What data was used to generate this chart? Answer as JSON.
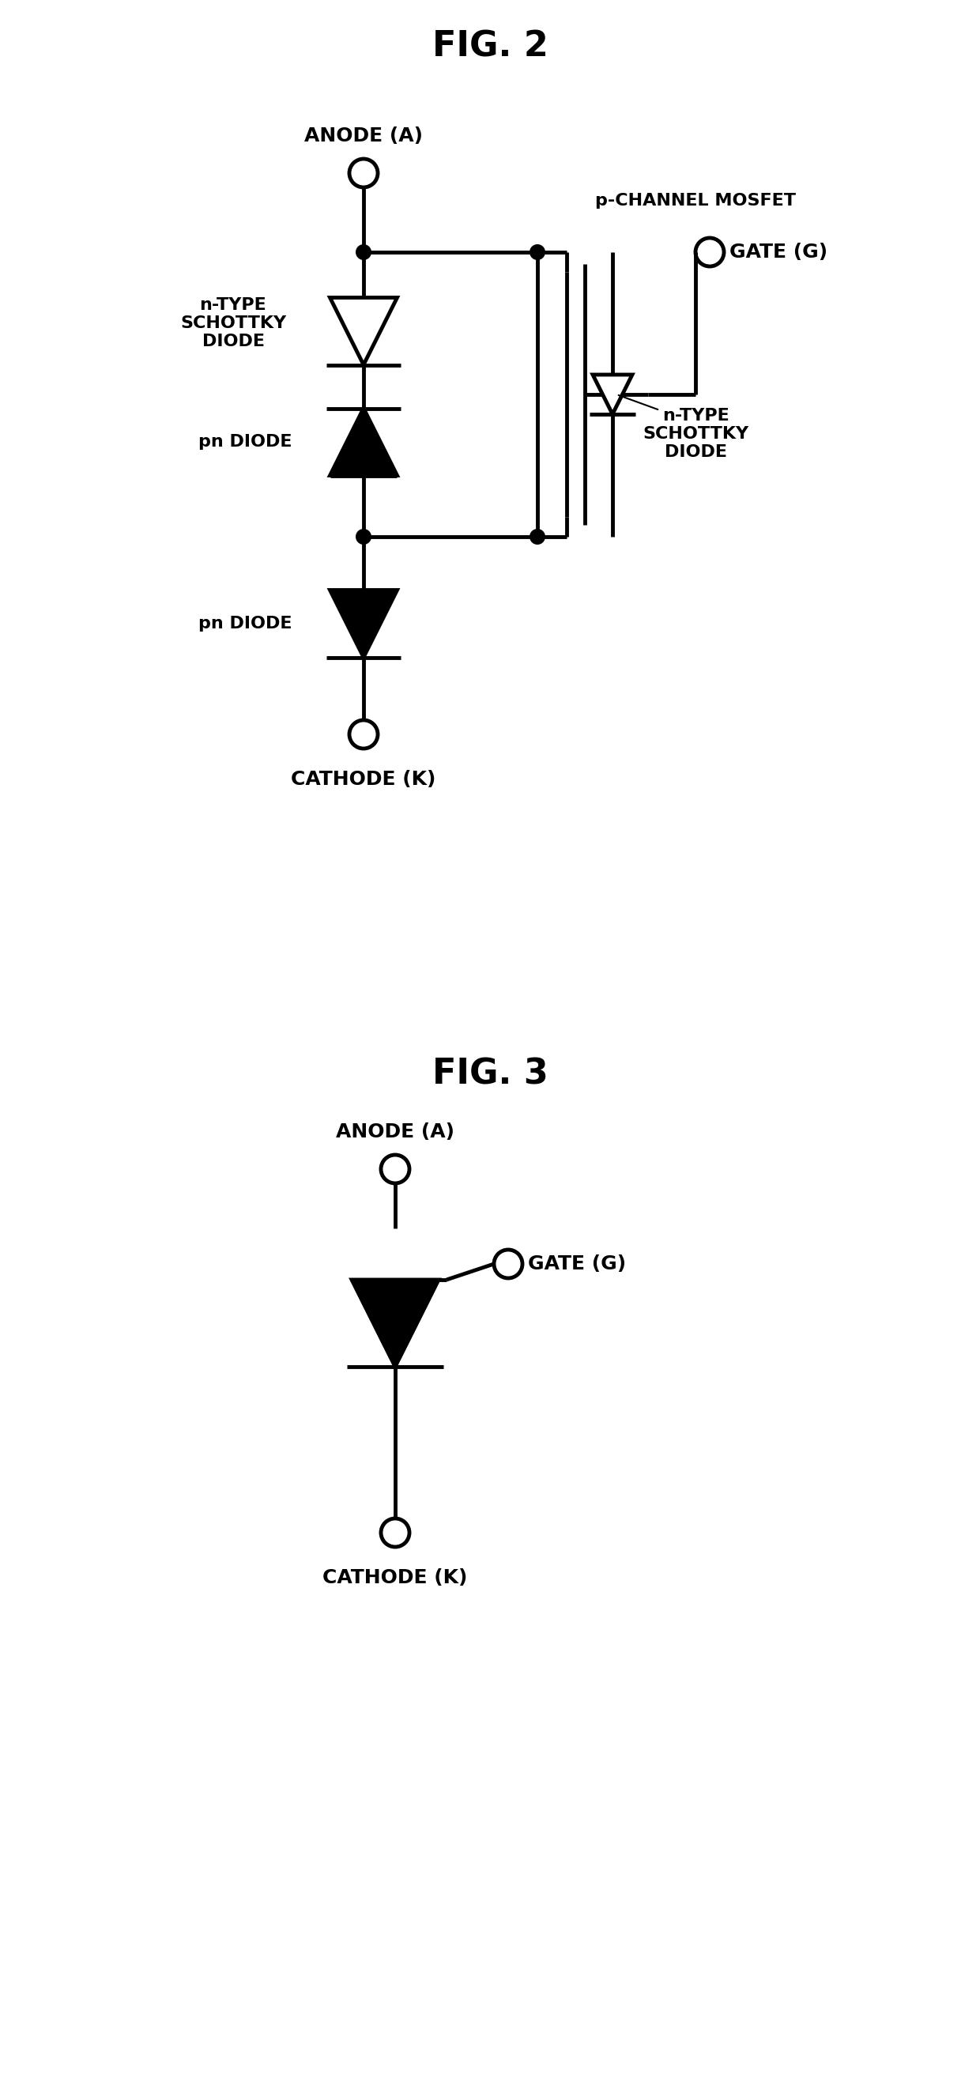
{
  "fig2_title": "FIG. 2",
  "fig3_title": "FIG. 3",
  "bg_color": "#ffffff",
  "line_color": "#000000",
  "line_width": 3.5,
  "fig2_labels": {
    "anode": "ANODE (A)",
    "cathode": "CATHODE (K)",
    "gate": "GATE (G)",
    "n_type_schottky": "n-TYPE\nSCHOTTKY\nDIODE",
    "pn_diode_upper": "pn DIODE",
    "pn_diode_lower": "pn DIODE",
    "p_channel_mosfet": "p-CHANNEL MOSFET",
    "n_type_schottky2": "n-TYPE\nSCHOTTKY\nDIODE"
  },
  "fig3_labels": {
    "anode": "ANODE (A)",
    "cathode": "CATHODE (K)",
    "gate": "GATE (G)"
  }
}
